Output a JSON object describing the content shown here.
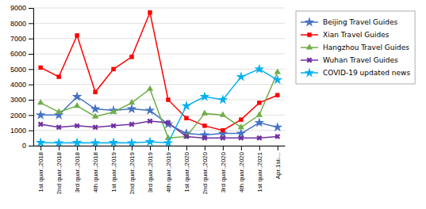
{
  "chart_data": {
    "type": "line",
    "categories": [
      "1st quar.,2018",
      "2nd quar.,2018",
      "3rd quar.,2018",
      "4th quar.,2018",
      "1st quar.,2019",
      "2nd quar.,2019",
      "3rd quar.,2019",
      "4th quar.,2019",
      "1st quar.,2020",
      "2nd quar.,2020",
      "3rd quar.,2020",
      "4th quar.,2020",
      "1st quar.,2021",
      "Apr.1st-..."
    ],
    "series": [
      {
        "name": "Beijing Travel Guides",
        "color": "#4472c4",
        "marker": "star",
        "values": [
          2000,
          2000,
          3200,
          2400,
          2300,
          2400,
          2300,
          1400,
          800,
          700,
          800,
          800,
          1500,
          1200
        ]
      },
      {
        "name": "Xian Travel Guides",
        "color": "#ff0000",
        "marker": "square",
        "values": [
          5100,
          4500,
          7200,
          3500,
          5000,
          5800,
          8700,
          3000,
          1800,
          1300,
          1000,
          1700,
          2800,
          3300
        ]
      },
      {
        "name": "Hangzhou Travel Guides",
        "color": "#70ad47",
        "marker": "triangle",
        "values": [
          2800,
          2200,
          2600,
          1900,
          2200,
          2800,
          3700,
          500,
          600,
          2100,
          2000,
          1200,
          2000,
          4800
        ]
      },
      {
        "name": "Wuhan Travel Guides",
        "color": "#7030a0",
        "marker": "x",
        "values": [
          1400,
          1200,
          1300,
          1200,
          1300,
          1400,
          1600,
          1500,
          600,
          500,
          500,
          500,
          500,
          600
        ]
      },
      {
        "name": "COVID-19 updated news",
        "color": "#00b0f0",
        "marker": "star",
        "values": [
          200,
          180,
          200,
          180,
          200,
          180,
          250,
          180,
          2600,
          3200,
          3000,
          4500,
          5000,
          4300
        ]
      }
    ],
    "ylim": [
      0,
      9000
    ],
    "yticks": [
      0,
      1000,
      2000,
      3000,
      4000,
      5000,
      6000,
      7000,
      8000,
      9000
    ],
    "grid": true,
    "legend": "right"
  }
}
